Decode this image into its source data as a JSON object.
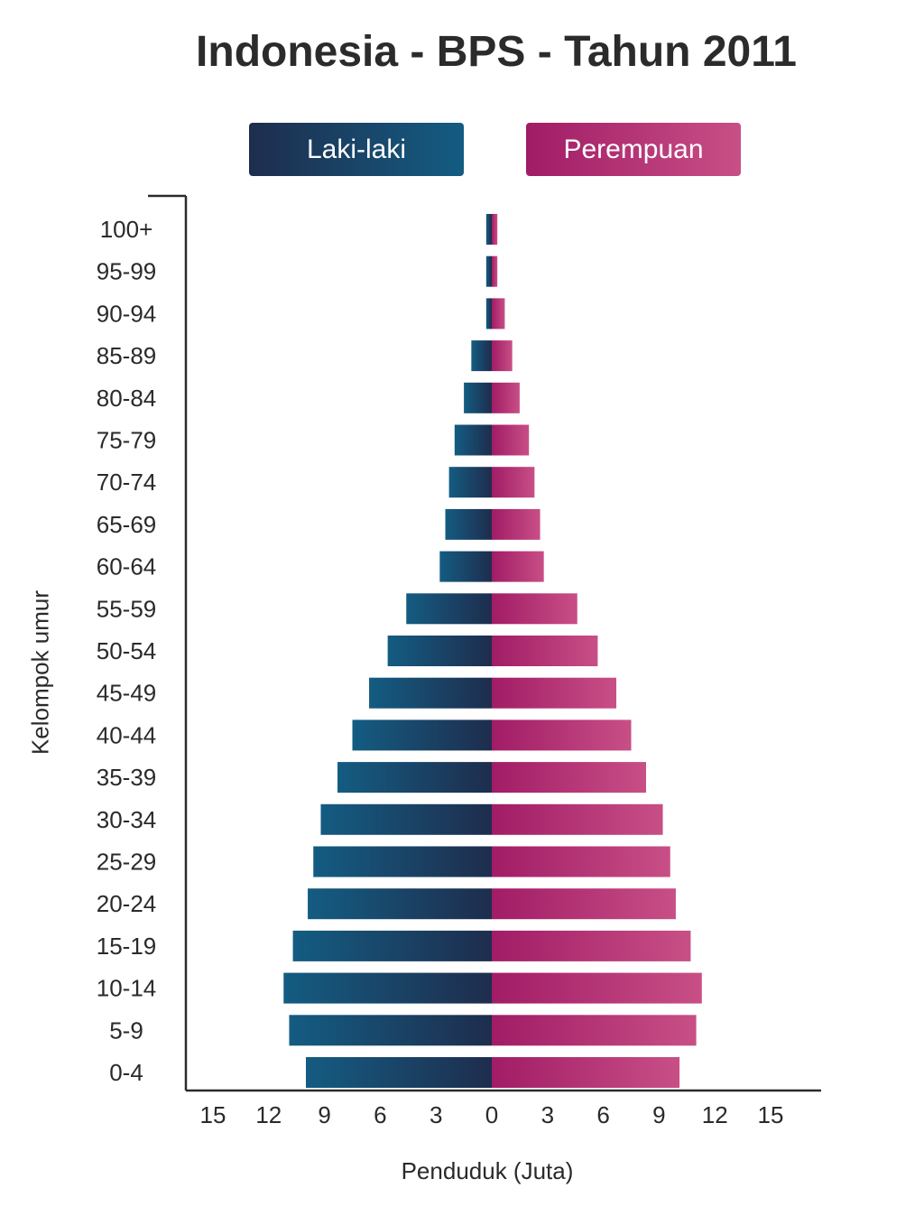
{
  "chart_data": {
    "type": "bar",
    "orientation": "horizontal-population-pyramid",
    "title": "Indonesia - BPS - Tahun 2011",
    "xlabel": "Penduduk (Juta)",
    "ylabel": "Kelompok umur",
    "categories": [
      "100+",
      "95-99",
      "90-94",
      "85-89",
      "80-84",
      "75-79",
      "70-74",
      "65-69",
      "60-64",
      "55-59",
      "50-54",
      "45-49",
      "40-44",
      "35-39",
      "30-34",
      "25-29",
      "20-24",
      "15-19",
      "10-14",
      "5-9",
      "0-4"
    ],
    "series": [
      {
        "name": "Laki-laki",
        "color_start": "#1e2d4d",
        "color_end": "#145c82",
        "values": [
          0.3,
          0.3,
          0.3,
          1.1,
          1.5,
          2.0,
          2.3,
          2.5,
          2.8,
          4.6,
          5.6,
          6.6,
          7.5,
          8.3,
          9.2,
          9.6,
          9.9,
          10.7,
          11.2,
          10.9,
          10.0
        ]
      },
      {
        "name": "Perempuan",
        "color_start": "#a11c66",
        "color_end": "#c84f86",
        "values": [
          0.3,
          0.3,
          0.7,
          1.1,
          1.5,
          2.0,
          2.3,
          2.6,
          2.8,
          4.6,
          5.7,
          6.7,
          7.5,
          8.3,
          9.2,
          9.6,
          9.9,
          10.7,
          11.3,
          11.0,
          10.1
        ]
      }
    ],
    "xlim": [
      -15,
      15
    ],
    "x_ticks": [
      "15",
      "12",
      "9",
      "6",
      "3",
      "0",
      "3",
      "6",
      "9",
      "12",
      "15"
    ],
    "legend": "top-center",
    "grid": false
  }
}
